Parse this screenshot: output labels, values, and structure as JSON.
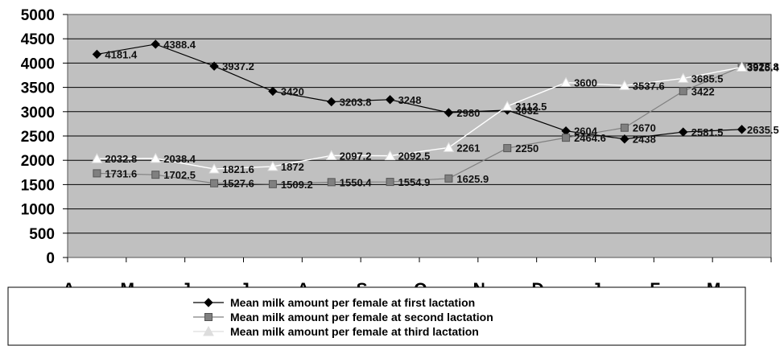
{
  "chart_data": {
    "type": "line",
    "categories": [
      "A",
      "M",
      "J",
      "J",
      "A",
      "S",
      "O",
      "N",
      "D",
      "J",
      "F",
      "M"
    ],
    "ylim": [
      0,
      5000
    ],
    "yticks": [
      "0",
      "500",
      "1000",
      "1500",
      "2000",
      "2500",
      "3000",
      "3500",
      "4000",
      "4500",
      "5000"
    ],
    "grid": true,
    "legend_position": "bottom",
    "series": [
      {
        "name": "Mean milk amount per female at first lactation",
        "color": "#000000",
        "marker": "diamond",
        "values": [
          4181.4,
          4388.4,
          3937.2,
          3420,
          3203.8,
          3248,
          2980,
          3032,
          2604,
          2438,
          2581.5,
          2635.5
        ],
        "labels": [
          "4181.4",
          "4388.4",
          "3937.2",
          "3420",
          "3203.8",
          "3248",
          "2980",
          "3032",
          "2604",
          "2438",
          "2581.5",
          "2635.5"
        ]
      },
      {
        "name": "Mean milk amount per female at second lactation",
        "color": "#808080",
        "marker": "square",
        "values": [
          1731.6,
          1702.5,
          1527.6,
          1509.2,
          1550.4,
          1554.9,
          1625.9,
          2250,
          2464.6,
          2670,
          3422,
          3928.8
        ],
        "labels": [
          "1731.6",
          "1702.5",
          "1527.6",
          "1509.2",
          "1550.4",
          "1554.9",
          "1625.9",
          "2250",
          "2464.6",
          "2670",
          "3422",
          "3928.8"
        ]
      },
      {
        "name": "Mean milk amount per female at third lactation",
        "color": "#ffffff",
        "marker": "triangle",
        "values": [
          2032.8,
          2038.4,
          1821.6,
          1872,
          2097.2,
          2092.5,
          2261,
          3112.5,
          3600,
          3537.6,
          3685.5,
          3915.4
        ],
        "labels": [
          "2032.8",
          "2038.4",
          "1821.6",
          "1872",
          "2097.2",
          "2092.5",
          "2261",
          "3112.5",
          "3600",
          "3537.6",
          "3685.5",
          "3915.4"
        ]
      }
    ]
  }
}
